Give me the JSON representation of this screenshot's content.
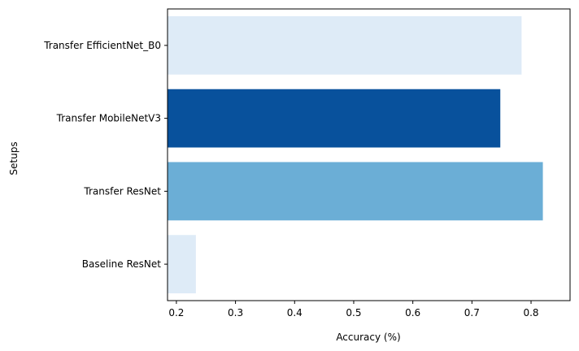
{
  "chart_data": {
    "type": "bar",
    "orientation": "horizontal",
    "categories": [
      "Baseline ResNet",
      "Transfer ResNet",
      "Transfer MobileNetV3",
      "Transfer EfficientNet_B0"
    ],
    "values": [
      0.233,
      0.82,
      0.748,
      0.784
    ],
    "colors": [
      "#deebf7",
      "#6baed6",
      "#08519c",
      "#deebf7"
    ],
    "xlabel": "Accuracy (%)",
    "ylabel": "Setups",
    "xlim": [
      0.185,
      0.866
    ],
    "xticks": [
      0.2,
      0.3,
      0.4,
      0.5,
      0.6,
      0.7,
      0.8
    ],
    "xtick_labels": [
      "0.2",
      "0.3",
      "0.4",
      "0.5",
      "0.6",
      "0.7",
      "0.8"
    ],
    "grid": false
  }
}
